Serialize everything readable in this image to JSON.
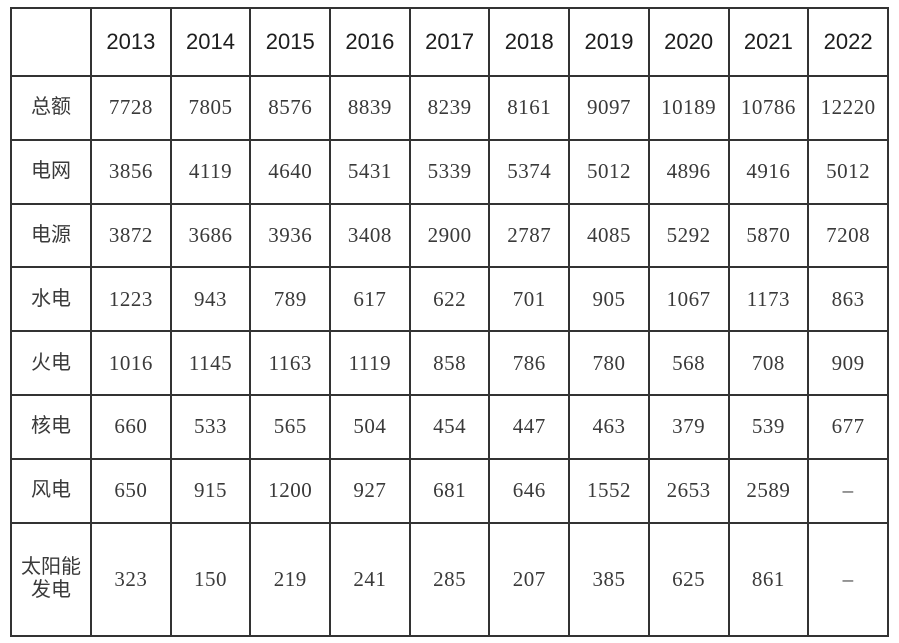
{
  "chart_data": {
    "type": "table",
    "columns": [
      "2013",
      "2014",
      "2015",
      "2016",
      "2017",
      "2018",
      "2019",
      "2020",
      "2021",
      "2022"
    ],
    "rows": [
      {
        "label": "总额",
        "values": [
          "7728",
          "7805",
          "8576",
          "8839",
          "8239",
          "8161",
          "9097",
          "10189",
          "10786",
          "12220"
        ]
      },
      {
        "label": "电网",
        "values": [
          "3856",
          "4119",
          "4640",
          "5431",
          "5339",
          "5374",
          "5012",
          "4896",
          "4916",
          "5012"
        ]
      },
      {
        "label": "电源",
        "values": [
          "3872",
          "3686",
          "3936",
          "3408",
          "2900",
          "2787",
          "4085",
          "5292",
          "5870",
          "7208"
        ]
      },
      {
        "label": "水电",
        "values": [
          "1223",
          "943",
          "789",
          "617",
          "622",
          "701",
          "905",
          "1067",
          "1173",
          "863"
        ]
      },
      {
        "label": "火电",
        "values": [
          "1016",
          "1145",
          "1163",
          "1119",
          "858",
          "786",
          "780",
          "568",
          "708",
          "909"
        ]
      },
      {
        "label": "核电",
        "values": [
          "660",
          "533",
          "565",
          "504",
          "454",
          "447",
          "463",
          "379",
          "539",
          "677"
        ]
      },
      {
        "label": "风电",
        "values": [
          "650",
          "915",
          "1200",
          "927",
          "681",
          "646",
          "1552",
          "2653",
          "2589",
          "–"
        ]
      },
      {
        "label": "太阳能发电",
        "values": [
          "323",
          "150",
          "219",
          "241",
          "285",
          "207",
          "385",
          "625",
          "861",
          "–"
        ]
      }
    ],
    "missing_value_marker": "–",
    "grid": true,
    "legend_position": "none"
  },
  "colors": {
    "border": "#333333",
    "header_text": "#1d1d1d",
    "body_text": "#3a3a3a",
    "background": "#ffffff"
  }
}
